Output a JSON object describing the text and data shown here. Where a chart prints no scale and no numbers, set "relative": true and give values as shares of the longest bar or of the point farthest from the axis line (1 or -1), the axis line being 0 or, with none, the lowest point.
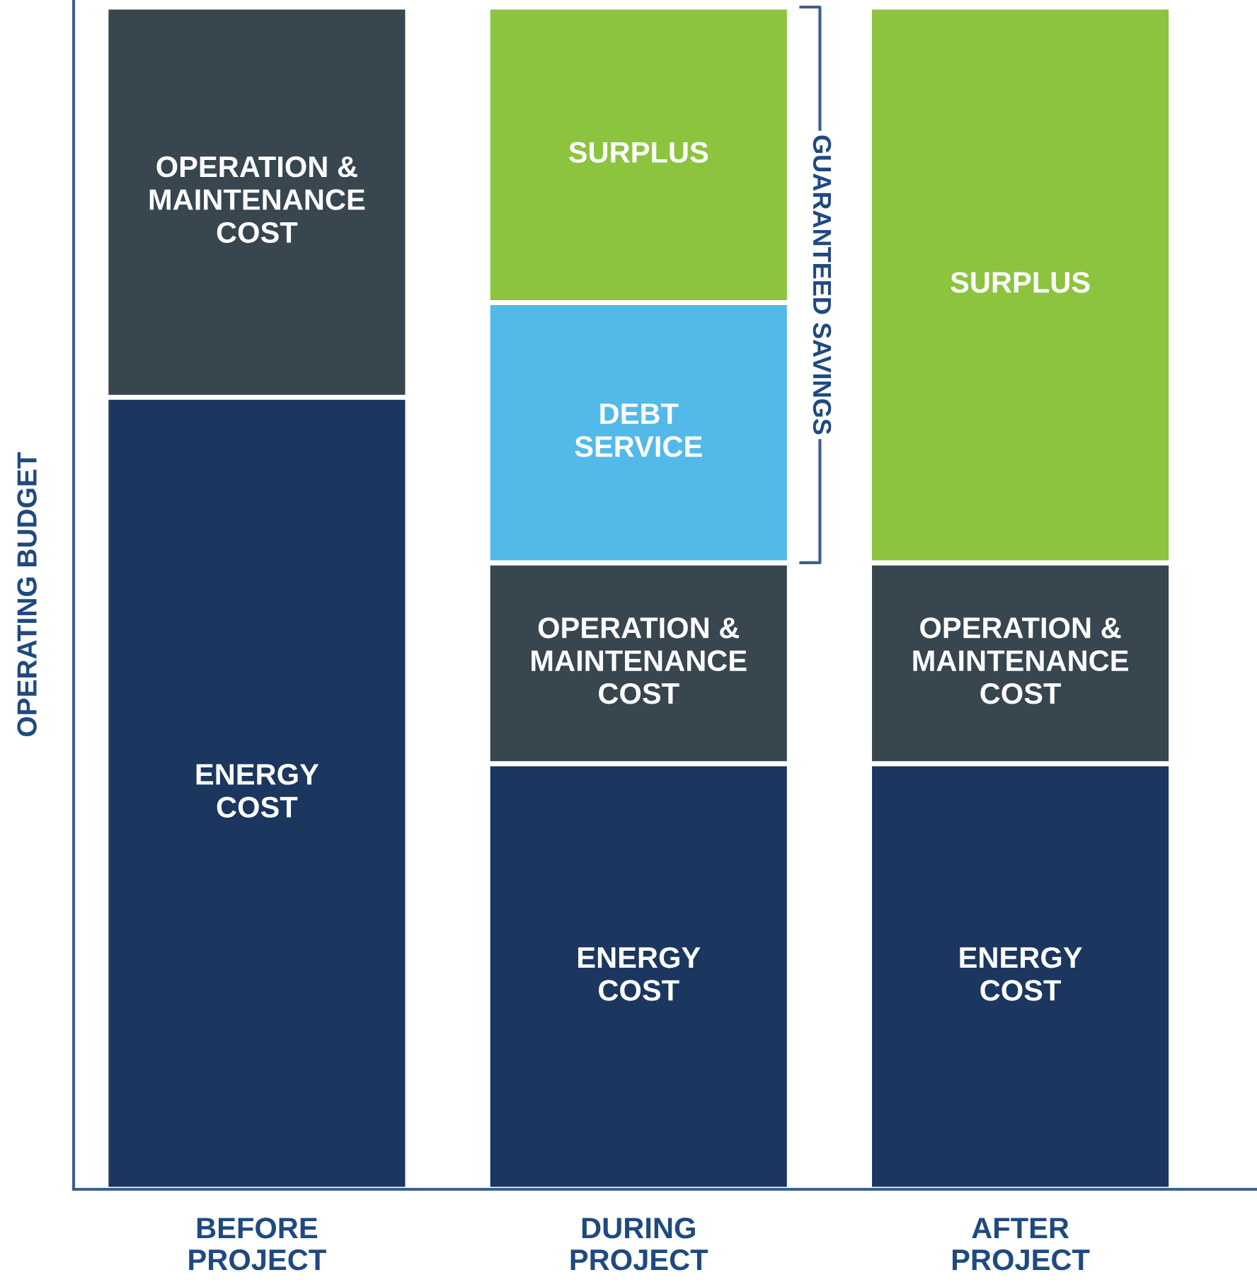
{
  "chart_data": {
    "type": "bar",
    "stacked": true,
    "relative": true,
    "ylabel": "OPERATING BUDGET",
    "categories": [
      "BEFORE\nPROJECT",
      "DURING\nPROJECT",
      "AFTER\nPROJECT"
    ],
    "series": [
      {
        "name": "ENERGY\nCOST",
        "color": "#1b365f",
        "values": [
          0.67,
          0.36,
          0.36
        ]
      },
      {
        "name": "OPERATION &\nMAINTENANCE\nCOST",
        "color": "#37464f",
        "values": [
          0.33,
          0.17,
          0.17
        ]
      },
      {
        "name": "DEBT\nSERVICE",
        "color": "#52b9e9",
        "values": [
          null,
          0.22,
          null
        ]
      },
      {
        "name": "SURPLUS",
        "color": "#8cc43f",
        "values": [
          null,
          0.25,
          0.47
        ]
      }
    ],
    "annotations": [
      "GUARANTEED SAVINGS"
    ],
    "grid": false,
    "legend": false
  }
}
